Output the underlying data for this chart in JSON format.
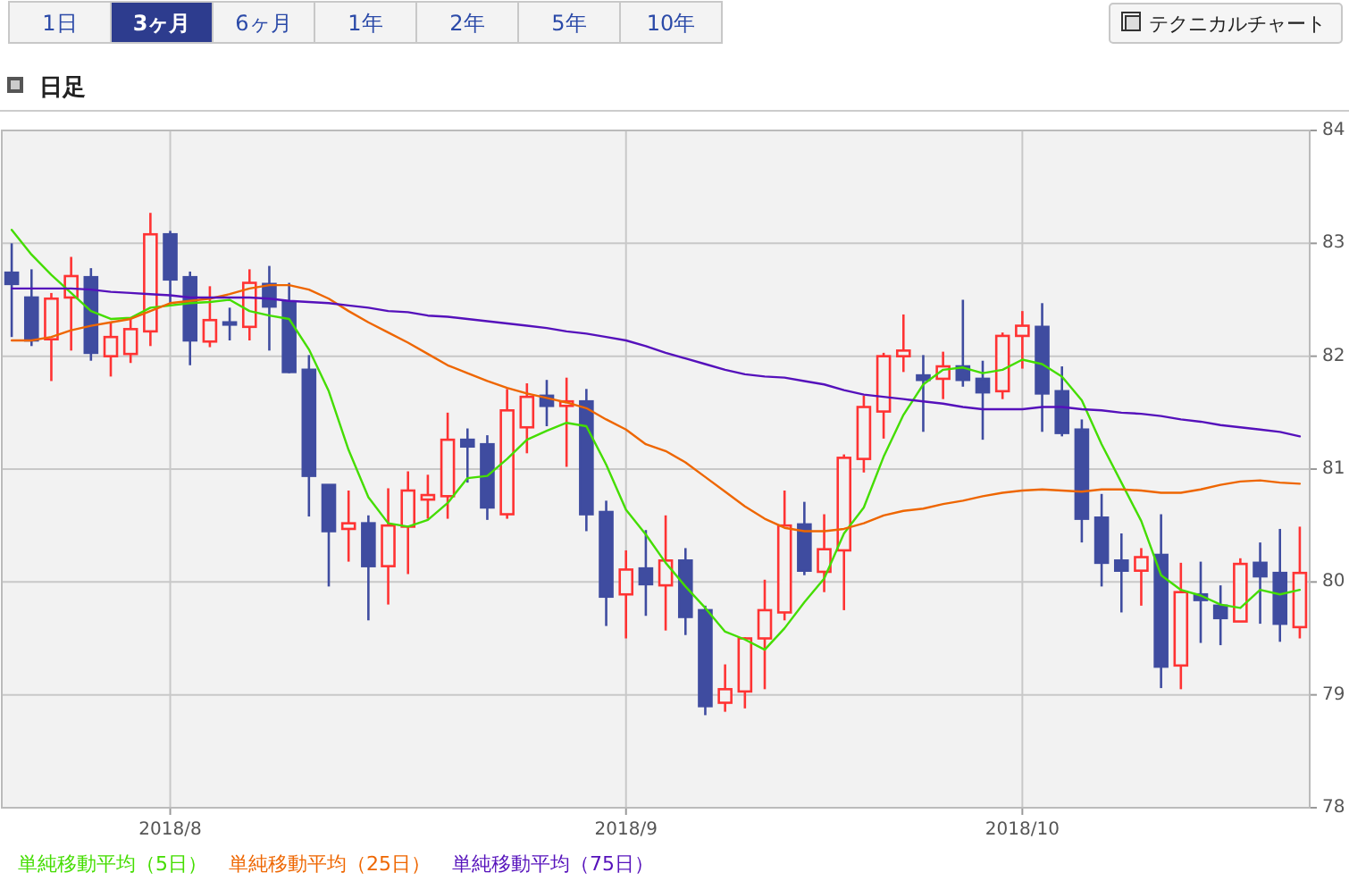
{
  "chart_data": {
    "type": "candlestick",
    "title": "日足",
    "annotations": [
      "1日",
      "3ヶ月",
      "6ヶ月",
      "1年",
      "2年",
      "5年",
      "10年",
      "テクニカルチャート"
    ],
    "categories": [
      null,
      null,
      null,
      null,
      null,
      null,
      null,
      null,
      "2018/8",
      null,
      null,
      null,
      null,
      null,
      null,
      null,
      null,
      null,
      null,
      null,
      null,
      null,
      null,
      null,
      null,
      null,
      null,
      null,
      null,
      null,
      null,
      "2018/9",
      null,
      null,
      null,
      null,
      null,
      null,
      null,
      null,
      null,
      null,
      null,
      null,
      null,
      null,
      null,
      null,
      null,
      null,
      null,
      "2018/10",
      null,
      null,
      null,
      null,
      null,
      null,
      null,
      null,
      null,
      null,
      null,
      null,
      null,
      null
    ],
    "ohlc": [
      [
        82.74,
        83.0,
        82.17,
        82.64
      ],
      [
        82.52,
        82.77,
        82.09,
        82.14
      ],
      [
        82.15,
        82.56,
        81.78,
        82.51
      ],
      [
        82.52,
        82.88,
        82.05,
        82.71
      ],
      [
        82.7,
        82.78,
        81.96,
        82.03
      ],
      [
        82.0,
        82.3,
        81.82,
        82.17
      ],
      [
        82.02,
        82.33,
        81.94,
        82.24
      ],
      [
        82.22,
        83.27,
        82.09,
        83.08
      ],
      [
        83.08,
        83.11,
        82.46,
        82.68
      ],
      [
        82.7,
        82.75,
        81.92,
        82.14
      ],
      [
        82.13,
        82.62,
        82.08,
        82.32
      ],
      [
        82.3,
        82.43,
        82.14,
        82.28
      ],
      [
        82.26,
        82.77,
        82.14,
        82.65
      ],
      [
        82.64,
        82.8,
        82.05,
        82.44
      ],
      [
        82.48,
        82.65,
        81.85,
        81.86
      ],
      [
        81.88,
        82.01,
        80.58,
        80.94
      ],
      [
        80.86,
        80.86,
        79.96,
        80.45
      ],
      [
        80.47,
        80.81,
        80.18,
        80.52
      ],
      [
        80.52,
        80.59,
        79.66,
        80.14
      ],
      [
        80.14,
        80.83,
        79.8,
        80.5
      ],
      [
        80.49,
        80.98,
        80.07,
        80.81
      ],
      [
        80.73,
        80.95,
        80.56,
        80.77
      ],
      [
        80.76,
        81.5,
        80.56,
        81.26
      ],
      [
        81.26,
        81.36,
        80.88,
        81.2
      ],
      [
        81.22,
        81.3,
        80.55,
        80.66
      ],
      [
        80.6,
        81.71,
        80.56,
        81.52
      ],
      [
        81.37,
        81.76,
        81.14,
        81.64
      ],
      [
        81.65,
        81.79,
        81.38,
        81.56
      ],
      [
        81.56,
        81.81,
        81.02,
        81.6
      ],
      [
        81.6,
        81.71,
        80.45,
        80.6
      ],
      [
        80.62,
        80.72,
        79.61,
        79.87
      ],
      [
        79.89,
        80.28,
        79.5,
        80.11
      ],
      [
        80.12,
        80.46,
        79.7,
        79.98
      ],
      [
        79.97,
        80.59,
        79.57,
        80.19
      ],
      [
        80.19,
        80.3,
        79.53,
        79.69
      ],
      [
        79.75,
        79.79,
        78.82,
        78.9
      ],
      [
        78.93,
        79.27,
        78.85,
        79.05
      ],
      [
        79.03,
        79.51,
        78.88,
        79.5
      ],
      [
        79.5,
        80.02,
        79.05,
        79.75
      ],
      [
        79.73,
        80.81,
        79.66,
        80.5
      ],
      [
        80.51,
        80.71,
        80.06,
        80.1
      ],
      [
        80.09,
        80.6,
        79.91,
        80.29
      ],
      [
        80.28,
        81.13,
        79.75,
        81.1
      ],
      [
        81.09,
        81.65,
        80.97,
        81.55
      ],
      [
        81.51,
        82.03,
        81.27,
        82.0
      ],
      [
        82.0,
        82.37,
        81.86,
        82.05
      ],
      [
        81.83,
        82.01,
        81.33,
        81.79
      ],
      [
        81.8,
        82.04,
        81.62,
        81.91
      ],
      [
        81.91,
        82.5,
        81.73,
        81.79
      ],
      [
        81.8,
        81.96,
        81.26,
        81.68
      ],
      [
        81.69,
        82.21,
        81.62,
        82.18
      ],
      [
        82.18,
        82.4,
        81.89,
        82.27
      ],
      [
        82.26,
        82.47,
        81.33,
        81.67
      ],
      [
        81.69,
        81.91,
        81.29,
        81.32
      ],
      [
        81.35,
        81.44,
        80.35,
        80.56
      ],
      [
        80.57,
        80.78,
        79.96,
        80.17
      ],
      [
        80.19,
        80.43,
        79.73,
        80.1
      ],
      [
        80.1,
        80.3,
        79.79,
        80.22
      ],
      [
        80.24,
        80.6,
        79.06,
        79.25
      ],
      [
        79.26,
        80.17,
        79.05,
        79.91
      ],
      [
        79.89,
        80.18,
        79.46,
        79.84
      ],
      [
        79.79,
        79.97,
        79.44,
        79.68
      ],
      [
        79.65,
        80.21,
        79.65,
        80.16
      ],
      [
        80.17,
        80.35,
        79.63,
        80.05
      ],
      [
        80.08,
        80.47,
        79.47,
        79.63
      ],
      [
        79.6,
        80.49,
        79.5,
        80.08
      ]
    ],
    "colors": [
      "#3f4ca0",
      "#3f4ca0",
      "#ff3333",
      "#ff3333",
      "#3f4ca0",
      "#ff3333",
      "#ff3333",
      "#ff3333",
      "#3f4ca0",
      "#3f4ca0",
      "#ff3333",
      "#3f4ca0",
      "#ff3333",
      "#3f4ca0",
      "#3f4ca0",
      "#3f4ca0",
      "#3f4ca0",
      "#ff3333",
      "#3f4ca0",
      "#ff3333",
      "#ff3333",
      "#ff3333",
      "#ff3333",
      "#3f4ca0",
      "#3f4ca0",
      "#ff3333",
      "#ff3333",
      "#3f4ca0",
      "#ff3333",
      "#3f4ca0",
      "#3f4ca0",
      "#ff3333",
      "#3f4ca0",
      "#ff3333",
      "#3f4ca0",
      "#3f4ca0",
      "#ff3333",
      "#ff3333",
      "#ff3333",
      "#ff3333",
      "#3f4ca0",
      "#ff3333",
      "#ff3333",
      "#ff3333",
      "#ff3333",
      "#ff3333",
      "#3f4ca0",
      "#ff3333",
      "#3f4ca0",
      "#3f4ca0",
      "#ff3333",
      "#ff3333",
      "#3f4ca0",
      "#3f4ca0",
      "#3f4ca0",
      "#3f4ca0",
      "#3f4ca0",
      "#ff3333",
      "#3f4ca0",
      "#ff3333",
      "#3f4ca0",
      "#3f4ca0",
      "#ff3333",
      "#3f4ca0",
      "#3f4ca0",
      "#ff3333"
    ],
    "series": [
      {
        "name": "単純移動平均（5日）",
        "type": "line",
        "color": "#44dd00",
        "values": [
          83.12,
          82.9,
          82.72,
          82.56,
          82.4,
          82.33,
          82.34,
          82.43,
          82.45,
          82.47,
          82.48,
          82.5,
          82.4,
          82.36,
          82.33,
          82.06,
          81.69,
          81.17,
          80.75,
          80.52,
          80.49,
          80.55,
          80.7,
          80.92,
          80.94,
          81.09,
          81.26,
          81.34,
          81.41,
          81.38,
          81.04,
          80.64,
          80.42,
          80.17,
          79.96,
          79.77,
          79.56,
          79.49,
          79.4,
          79.59,
          79.82,
          80.03,
          80.43,
          80.66,
          81.11,
          81.48,
          81.75,
          81.88,
          81.9,
          81.85,
          81.88,
          81.97,
          81.93,
          81.82,
          81.61,
          81.22,
          80.88,
          80.54,
          80.06,
          79.93,
          79.88,
          79.8,
          79.77,
          79.93,
          79.89,
          79.93
        ]
      },
      {
        "name": "単純移動平均（25日）",
        "type": "line",
        "color": "#ee6600",
        "values": [
          82.14,
          82.14,
          82.17,
          82.23,
          82.27,
          82.3,
          82.33,
          82.4,
          82.47,
          82.49,
          82.51,
          82.55,
          82.6,
          82.63,
          82.63,
          82.59,
          82.51,
          82.4,
          82.3,
          82.21,
          82.12,
          82.02,
          81.92,
          81.85,
          81.78,
          81.72,
          81.67,
          81.63,
          81.59,
          81.54,
          81.44,
          81.35,
          81.22,
          81.16,
          81.06,
          80.93,
          80.8,
          80.67,
          80.56,
          80.48,
          80.45,
          80.45,
          80.47,
          80.52,
          80.59,
          80.63,
          80.65,
          80.69,
          80.72,
          80.76,
          80.79,
          80.81,
          80.82,
          80.81,
          80.8,
          80.82,
          80.82,
          80.81,
          80.79,
          80.79,
          80.82,
          80.86,
          80.89,
          80.9,
          80.88,
          80.87
        ]
      },
      {
        "name": "単純移動平均（75日）",
        "type": "line",
        "color": "#5511bb",
        "values": [
          82.6,
          82.6,
          82.6,
          82.6,
          82.59,
          82.57,
          82.56,
          82.55,
          82.54,
          82.52,
          82.52,
          82.52,
          82.52,
          82.51,
          82.49,
          82.48,
          82.47,
          82.45,
          82.43,
          82.4,
          82.39,
          82.36,
          82.35,
          82.33,
          82.31,
          82.29,
          82.27,
          82.25,
          82.22,
          82.2,
          82.17,
          82.14,
          82.09,
          82.03,
          81.98,
          81.93,
          81.88,
          81.84,
          81.82,
          81.81,
          81.78,
          81.75,
          81.7,
          81.66,
          81.64,
          81.62,
          81.6,
          81.58,
          81.55,
          81.53,
          81.53,
          81.53,
          81.55,
          81.55,
          81.53,
          81.52,
          81.5,
          81.49,
          81.47,
          81.44,
          81.42,
          81.39,
          81.37,
          81.35,
          81.33,
          81.29
        ]
      }
    ],
    "ylim": [
      78,
      84
    ],
    "yticks": [
      78,
      79,
      80,
      81,
      82,
      83,
      84
    ],
    "grid": true,
    "legend": "bottom"
  }
}
